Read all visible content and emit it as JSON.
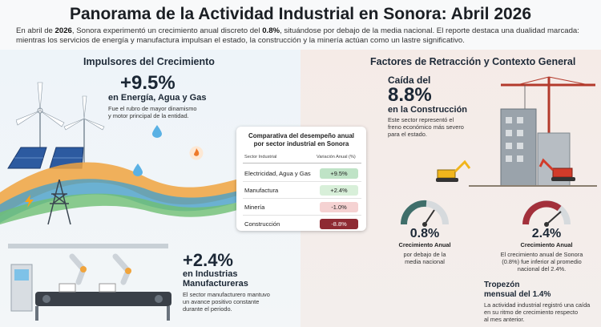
{
  "header": {
    "title": "Panorama de la Actividad Industrial en Sonora: Abril 2026",
    "intro_pre": "En abril de ",
    "intro_year": "2026",
    "intro_mid": ", Sonora experimentó un crecimiento anual discreto del ",
    "intro_rate": "0.8%",
    "intro_post": ", situándose por debajo de la media nacional. El reporte destaca una dualidad marcada: mientras los servicios de energía y manufactura impulsan el estado, la construcción y la minería actúan como un lastre significativo."
  },
  "left": {
    "section_title": "Impulsores del Crecimiento",
    "energy_value": "+9.5%",
    "energy_label": "en Energía, Agua y Gas",
    "energy_note_1": "Fue el rubro de mayor dinamismo",
    "energy_note_2": "y motor principal de la entidad.",
    "manuf_value": "+2.4%",
    "manuf_label_1": "en Industrias",
    "manuf_label_2": "Manufactureras",
    "manuf_note_1": "El sector manufacturero mantuvo",
    "manuf_note_2": "un avance positivo constante",
    "manuf_note_3": "durante el periodo."
  },
  "right": {
    "section_title": "Factores de Retracción y Contexto General",
    "construction_pre": "Caída del",
    "construction_value": "8.8%",
    "construction_label": "en la Construcción",
    "construction_note_1": "Este sector representó el",
    "construction_note_2": "freno económico más severo",
    "construction_note_3": "para el estado.",
    "gauge1_value": "0.8%",
    "gauge1_label": "Crecimiento Anual",
    "gauge1_note_1": "por debajo de la",
    "gauge1_note_2": "media nacional",
    "gauge2_value": "2.4%",
    "gauge2_label": "Crecimiento Anual",
    "gauge2_note_1": "El crecimiento anual de Sonora",
    "gauge2_note_2": "(0.8%) fue inferior al promedio",
    "gauge2_note_3": "nacional del 2.4%.",
    "stumble_title_1": "Tropezón",
    "stumble_title_2": "mensual del 1.4%",
    "stumble_note_1": "La actividad industrial registró una caída",
    "stumble_note_2": "en su ritmo de crecimiento respecto",
    "stumble_note_3": "al mes anterior."
  },
  "table": {
    "title_1": "Comparativa del desempeño anual",
    "title_2": "por sector industrial en Sonora",
    "col_sector": "Sector Industrial",
    "col_change": "Variación Anual (%)",
    "rows": [
      {
        "sector": "Electricidad, Agua y Gas",
        "change": "+9.5%",
        "color": "#bfe3c6"
      },
      {
        "sector": "Manufactura",
        "change": "+2.4%",
        "color": "#d8efd9"
      },
      {
        "sector": "Minería",
        "change": "-1.0%",
        "color": "#f5d2d2"
      },
      {
        "sector": "Construcción",
        "change": "-8.8%",
        "color": "#8e2a33",
        "text_color": "#ffffff"
      }
    ]
  },
  "colors": {
    "positive": "#3c9a54",
    "negative": "#a3303b",
    "gauge_teal": "#3f6e6a"
  }
}
